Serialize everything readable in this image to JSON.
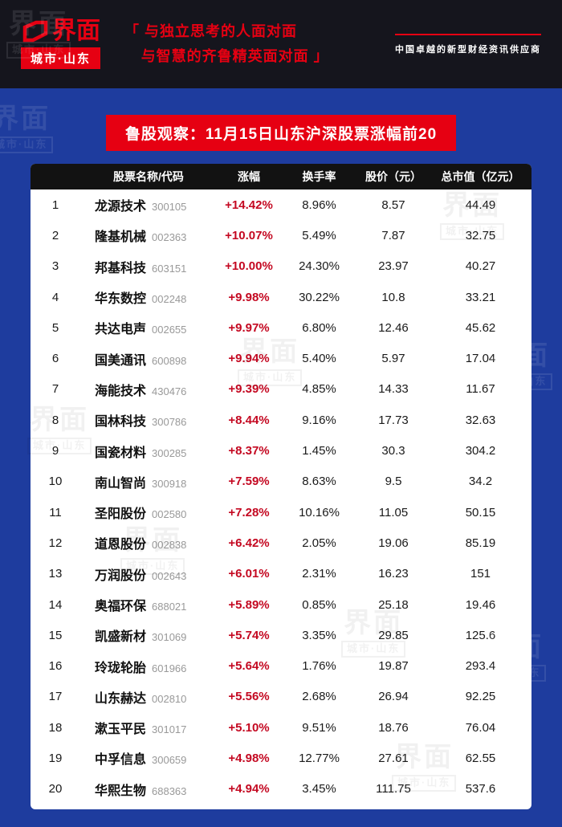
{
  "header": {
    "logo_main": "界面",
    "logo_sub": "城市·山东",
    "quote_line1": "「 与独立思考的人面对面",
    "quote_line2": "与智慧的齐鲁精英面对面 」",
    "tagline": "中国卓越的新型财经资讯供应商"
  },
  "banner": {
    "title": "鲁股观察：11月15日山东沪深股票涨幅前20"
  },
  "watermark": {
    "line1": "界面",
    "line2": "城市·山东"
  },
  "colors": {
    "brand_red": "#e60012",
    "page_blue": "#1e3c9e",
    "topbar_black": "#15151d",
    "table_header_black": "#121212",
    "change_red": "#c40821"
  },
  "chart_data": {
    "type": "table",
    "title": "鲁股观察：11月15日山东沪深股票涨幅前20",
    "columns": [
      "股票名称/代码",
      "涨幅",
      "换手率",
      "股价（元）",
      "总市值（亿元）"
    ],
    "rows": [
      {
        "rank": "1",
        "name": "龙源技术",
        "code": "300105",
        "change": "+14.42%",
        "turnover": "8.96%",
        "price": "8.57",
        "market_cap": "44.49"
      },
      {
        "rank": "2",
        "name": "隆基机械",
        "code": "002363",
        "change": "+10.07%",
        "turnover": "5.49%",
        "price": "7.87",
        "market_cap": "32.75"
      },
      {
        "rank": "3",
        "name": "邦基科技",
        "code": "603151",
        "change": "+10.00%",
        "turnover": "24.30%",
        "price": "23.97",
        "market_cap": "40.27"
      },
      {
        "rank": "4",
        "name": "华东数控",
        "code": "002248",
        "change": "+9.98%",
        "turnover": "30.22%",
        "price": "10.8",
        "market_cap": "33.21"
      },
      {
        "rank": "5",
        "name": "共达电声",
        "code": "002655",
        "change": "+9.97%",
        "turnover": "6.80%",
        "price": "12.46",
        "market_cap": "45.62"
      },
      {
        "rank": "6",
        "name": "国美通讯",
        "code": "600898",
        "change": "+9.94%",
        "turnover": "5.40%",
        "price": "5.97",
        "market_cap": "17.04"
      },
      {
        "rank": "7",
        "name": "海能技术",
        "code": "430476",
        "change": "+9.39%",
        "turnover": "4.85%",
        "price": "14.33",
        "market_cap": "11.67"
      },
      {
        "rank": "8",
        "name": "国林科技",
        "code": "300786",
        "change": "+8.44%",
        "turnover": "9.16%",
        "price": "17.73",
        "market_cap": "32.63"
      },
      {
        "rank": "9",
        "name": "国瓷材料",
        "code": "300285",
        "change": "+8.37%",
        "turnover": "1.45%",
        "price": "30.3",
        "market_cap": "304.2"
      },
      {
        "rank": "10",
        "name": "南山智尚",
        "code": "300918",
        "change": "+7.59%",
        "turnover": "8.63%",
        "price": "9.5",
        "market_cap": "34.2"
      },
      {
        "rank": "11",
        "name": "圣阳股份",
        "code": "002580",
        "change": "+7.28%",
        "turnover": "10.16%",
        "price": "11.05",
        "market_cap": "50.15"
      },
      {
        "rank": "12",
        "name": "道恩股份",
        "code": "002838",
        "change": "+6.42%",
        "turnover": "2.05%",
        "price": "19.06",
        "market_cap": "85.19"
      },
      {
        "rank": "13",
        "name": "万润股份",
        "code": "002643",
        "change": "+6.01%",
        "turnover": "2.31%",
        "price": "16.23",
        "market_cap": "151"
      },
      {
        "rank": "14",
        "name": "奥福环保",
        "code": "688021",
        "change": "+5.89%",
        "turnover": "0.85%",
        "price": "25.18",
        "market_cap": "19.46"
      },
      {
        "rank": "15",
        "name": "凯盛新材",
        "code": "301069",
        "change": "+5.74%",
        "turnover": "3.35%",
        "price": "29.85",
        "market_cap": "125.6"
      },
      {
        "rank": "16",
        "name": "玲珑轮胎",
        "code": "601966",
        "change": "+5.64%",
        "turnover": "1.76%",
        "price": "19.87",
        "market_cap": "293.4"
      },
      {
        "rank": "17",
        "name": "山东赫达",
        "code": "002810",
        "change": "+5.56%",
        "turnover": "2.68%",
        "price": "26.94",
        "market_cap": "92.25"
      },
      {
        "rank": "18",
        "name": "漱玉平民",
        "code": "301017",
        "change": "+5.10%",
        "turnover": "9.51%",
        "price": "18.76",
        "market_cap": "76.04"
      },
      {
        "rank": "19",
        "name": "中孚信息",
        "code": "300659",
        "change": "+4.98%",
        "turnover": "12.77%",
        "price": "27.61",
        "market_cap": "62.55"
      },
      {
        "rank": "20",
        "name": "华熙生物",
        "code": "688363",
        "change": "+4.94%",
        "turnover": "3.45%",
        "price": "111.75",
        "market_cap": "537.6"
      }
    ]
  }
}
